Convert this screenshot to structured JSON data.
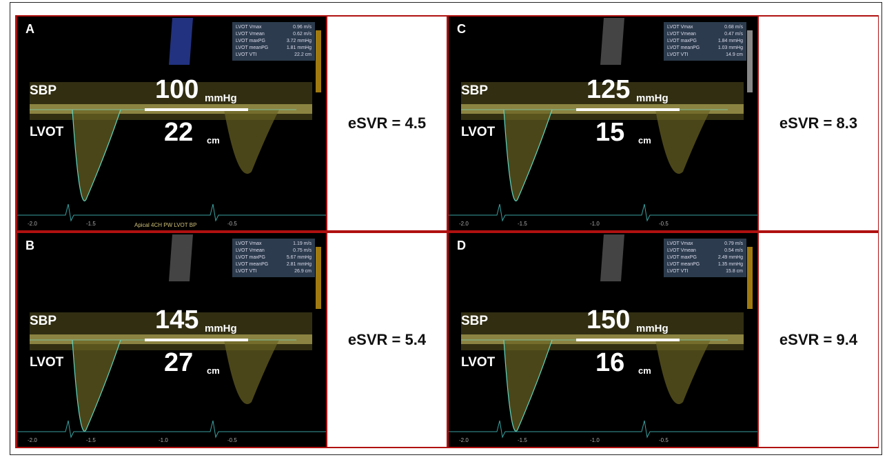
{
  "panels": [
    {
      "letter": "A",
      "sbp": "SBP",
      "lvot": "LVOT",
      "pressure": "100",
      "pressure_unit": "mmHg",
      "vti": "22",
      "vti_unit": "cm",
      "esvr": "eSVR = 4.5",
      "measurements": [
        [
          "LVOT Vmax",
          "0.96 m/s"
        ],
        [
          "LVOT Vmean",
          "0.62 m/s"
        ],
        [
          "LVOT maxPG",
          "3.72 mmHg"
        ],
        [
          "LVOT meanPG",
          "1.81 mmHg"
        ],
        [
          "LVOT VTI",
          "22.2 cm"
        ]
      ],
      "x_axis": [
        "-2.0",
        "-1.5",
        "-0.5"
      ],
      "caption": "Apical 4CH PW LVOT BP"
    },
    {
      "letter": "B",
      "sbp": "SBP",
      "lvot": "LVOT",
      "pressure": "145",
      "pressure_unit": "mmHg",
      "vti": "27",
      "vti_unit": "cm",
      "esvr": "eSVR = 5.4",
      "measurements": [
        [
          "LVOT Vmax",
          "1.19 m/s"
        ],
        [
          "LVOT Vmean",
          "0.75 m/s"
        ],
        [
          "LVOT maxPG",
          "5.67 mmHg"
        ],
        [
          "LVOT meanPG",
          "2.81 mmHg"
        ],
        [
          "LVOT VTI",
          "26.9 cm"
        ]
      ],
      "x_axis": [
        "-2.0",
        "-1.5",
        "-1.0",
        "-0.5"
      ]
    },
    {
      "letter": "C",
      "sbp": "SBP",
      "lvot": "LVOT",
      "pressure": "125",
      "pressure_unit": "mmHg",
      "vti": "15",
      "vti_unit": "cm",
      "esvr": "eSVR = 8.3",
      "measurements": [
        [
          "LVOT Vmax",
          "0.68 m/s"
        ],
        [
          "LVOT Vmean",
          "0.47 m/s"
        ],
        [
          "LVOT maxPG",
          "1.84 mmHg"
        ],
        [
          "LVOT meanPG",
          "1.03 mmHg"
        ],
        [
          "LVOT VTI",
          "14.9 cm"
        ]
      ],
      "x_axis": [
        "-2.0",
        "-1.5",
        "-1.0",
        "-0.5"
      ]
    },
    {
      "letter": "D",
      "sbp": "SBP",
      "lvot": "LVOT",
      "pressure": "150",
      "pressure_unit": "mmHg",
      "vti": "16",
      "vti_unit": "cm",
      "esvr": "eSVR = 9.4",
      "measurements": [
        [
          "LVOT Vmax",
          "0.79 m/s"
        ],
        [
          "LVOT Vmean",
          "0.54 m/s"
        ],
        [
          "LVOT maxPG",
          "2.49 mmHg"
        ],
        [
          "LVOT meanPG",
          "1.35 mmHg"
        ],
        [
          "LVOT VTI",
          "15.8 cm"
        ]
      ],
      "x_axis": [
        "-2.0",
        "-1.5",
        "-1.0",
        "-0.5"
      ]
    }
  ]
}
